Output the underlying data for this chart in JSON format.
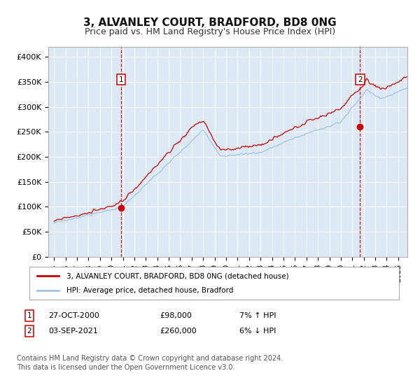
{
  "title": "3, ALVANLEY COURT, BRADFORD, BD8 0NG",
  "subtitle": "Price paid vs. HM Land Registry's House Price Index (HPI)",
  "title_fontsize": 11,
  "subtitle_fontsize": 9,
  "ylabel_ticks": [
    "£0",
    "£50K",
    "£100K",
    "£150K",
    "£200K",
    "£250K",
    "£300K",
    "£350K",
    "£400K"
  ],
  "ytick_values": [
    0,
    50000,
    100000,
    150000,
    200000,
    250000,
    300000,
    350000,
    400000
  ],
  "ylim": [
    0,
    420000
  ],
  "xlim_start": 1994.5,
  "xlim_end": 2025.8,
  "bg_color": "#dce9f5",
  "grid_color": "#ffffff",
  "red_line_color": "#cc0000",
  "blue_line_color": "#a0c4e0",
  "sale1_x": 2000.83,
  "sale1_y": 98000,
  "sale1_label": "1",
  "sale1_date": "27-OCT-2000",
  "sale1_price": "£98,000",
  "sale1_hpi": "7% ↑ HPI",
  "sale2_x": 2021.67,
  "sale2_y": 260000,
  "sale2_label": "2",
  "sale2_date": "03-SEP-2021",
  "sale2_price": "£260,000",
  "sale2_hpi": "6% ↓ HPI",
  "legend_red": "3, ALVANLEY COURT, BRADFORD, BD8 0NG (detached house)",
  "legend_blue": "HPI: Average price, detached house, Bradford",
  "footnote": "Contains HM Land Registry data © Crown copyright and database right 2024.\nThis data is licensed under the Open Government Licence v3.0.",
  "footnote_fontsize": 7
}
